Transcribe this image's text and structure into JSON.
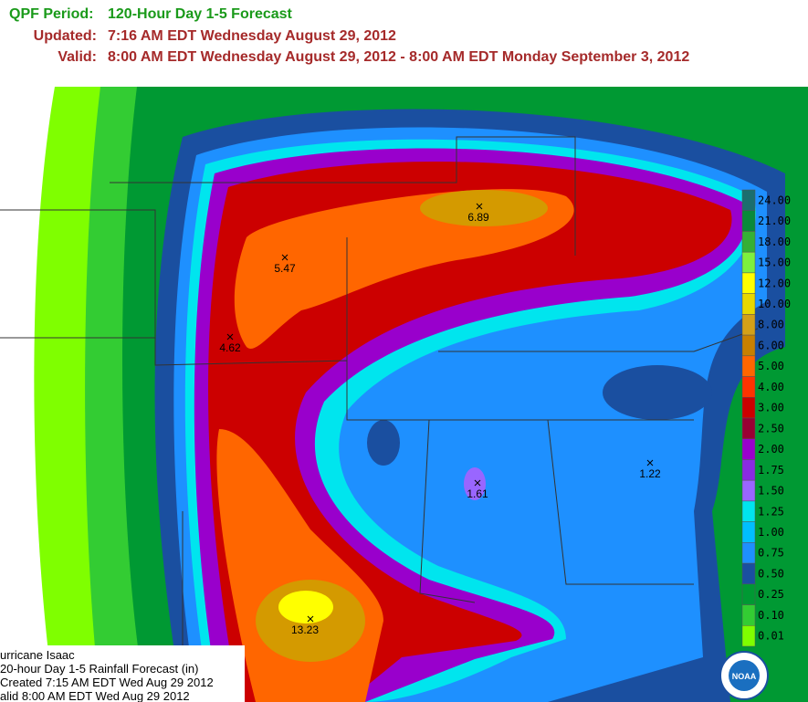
{
  "header": {
    "period_label": "QPF Period:",
    "period": "120-Hour Day 1-5 Forecast",
    "updated_label": "Updated:",
    "updated": "7:16 AM EDT Wednesday August 29, 2012",
    "valid_label": "Valid:",
    "valid": "8:00 AM EDT Wednesday August 29, 2012 - 8:00 AM EDT Monday September 3, 2012"
  },
  "legend": {
    "items": [
      {
        "label": "24.00",
        "color": "#1b6e6e"
      },
      {
        "label": "21.00",
        "color": "#0a8a3a"
      },
      {
        "label": "18.00",
        "color": "#35b035"
      },
      {
        "label": "15.00",
        "color": "#7df03f"
      },
      {
        "label": "12.00",
        "color": "#ffff00"
      },
      {
        "label": "10.00",
        "color": "#e8d800"
      },
      {
        "label": "8.00",
        "color": "#d4a017"
      },
      {
        "label": "6.00",
        "color": "#c88000"
      },
      {
        "label": "5.00",
        "color": "#ff6600"
      },
      {
        "label": "4.00",
        "color": "#ff3300"
      },
      {
        "label": "3.00",
        "color": "#cc0000"
      },
      {
        "label": "2.50",
        "color": "#990033"
      },
      {
        "label": "2.00",
        "color": "#9900cc"
      },
      {
        "label": "1.75",
        "color": "#8a2be2"
      },
      {
        "label": "1.50",
        "color": "#9966ff"
      },
      {
        "label": "1.25",
        "color": "#00e5ee"
      },
      {
        "label": "1.00",
        "color": "#00bfff"
      },
      {
        "label": "0.75",
        "color": "#1e90ff"
      },
      {
        "label": "0.50",
        "color": "#1a4fa0"
      },
      {
        "label": "0.25",
        "color": "#009933"
      },
      {
        "label": "0.10",
        "color": "#33cc33"
      },
      {
        "label": "0.01",
        "color": "#7fff00"
      }
    ]
  },
  "maxima": [
    {
      "label": "6.89"
    },
    {
      "label": "5.47"
    },
    {
      "label": "4.62"
    },
    {
      "label": "1.61"
    },
    {
      "label": "1.22"
    },
    {
      "label": "13.23"
    }
  ],
  "caption": {
    "lines": [
      "urricane Isaac",
      "20-hour Day 1-5 Rainfall Forecast (in)",
      "Created 7:15 AM EDT Wed Aug 29 2012",
      "alid 8:00 AM EDT Wed Aug 29 2012"
    ]
  },
  "logo": "NOAA"
}
